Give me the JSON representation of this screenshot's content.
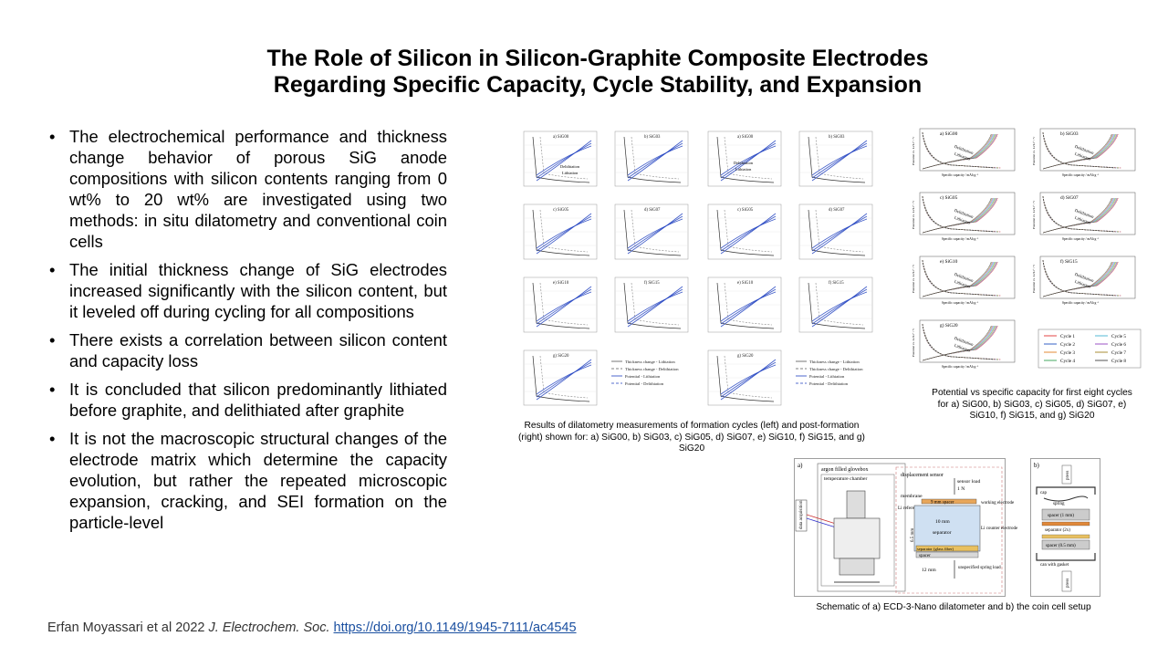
{
  "title": {
    "line1": "The Role of Silicon in Silicon-Graphite Composite Electrodes",
    "line2": "Regarding Specific Capacity, Cycle Stability, and Expansion"
  },
  "bullets": [
    "The electrochemical performance and thickness change behavior of porous SiG anode compositions with silicon contents ranging from 0 wt% to 20 wt% are investigated using two methods: in situ dilatometry and conventional coin cells",
    "The initial thickness change of SiG electrodes increased significantly with the silicon content, but it leveled off during cycling for all compositions",
    "There exists a correlation between silicon content and capacity loss",
    "It is concluded that silicon predominantly lithiated before graphite, and delithiated after graphite",
    "It is not the macroscopic structural changes of the electrode matrix which determine the capacity evolution, but rather the repeated microscopic expansion, cracking, and SEI formation on the particle-level"
  ],
  "citation": {
    "authors": "Erfan Moyassari et al 2022 ",
    "journal": "J. Electrochem. Soc.",
    "doi": "https://doi.org/10.1149/1945-7111/ac4545"
  },
  "figure1": {
    "caption": "Results of dilatometry measurements of formation cycles (left) and post-formation (right) shown for: a) SiG00, b) SiG03, c) SiG05, d) SiG07, e) SiG10, f) SiG15, and g) SiG20",
    "labels_left": [
      "a) SiG00",
      "b) SiG03",
      "c) SiG05",
      "d) SiG07",
      "e) SiG10",
      "f) SiG15",
      "g) SiG20"
    ],
    "labels_right": [
      "a) SiG00",
      "b) SiG03",
      "c) SiG05",
      "d) SiG07",
      "e) SiG10",
      "f) SiG15",
      "g) SiG20"
    ],
    "legend_left": [
      "Thickness change - Lithiation",
      "Thickness change - Delithiation",
      "Potential - Lithiation",
      "Potential - Delithiation"
    ],
    "legend_right": [
      "Thickness change - Lithiation",
      "Thickness change - Delithiation",
      "Potential - Lithiation",
      "Potential - Delithiation"
    ],
    "annotation_delith": "Delithiation",
    "annotation_lith": "Lithiation"
  },
  "figure2": {
    "caption": "Potential vs specific capacity for first eight cycles for a) SiG00, b) SiG03, c) SiG05, d) SiG07, e) SiG10, f) SiG15, and g) SiG20",
    "panels": [
      "a) SiG00",
      "b) SiG03",
      "c) SiG05",
      "d) SiG07",
      "e) SiG10",
      "f) SiG15",
      "g) SiG20"
    ],
    "ylabel": "Potential vs. Li/Li⁺ / V",
    "xlabel": "Specific capacity / mAh g⁻¹",
    "annotation_delith": "Delithiation",
    "annotation_lith": "Lithiation",
    "legend": [
      "Cycle 1",
      "Cycle 2",
      "Cycle 3",
      "Cycle 4",
      "Cycle 5",
      "Cycle 6",
      "Cycle 7",
      "Cycle 8"
    ],
    "colors": [
      "#e03030",
      "#2050c0",
      "#e07b20",
      "#30a050",
      "#40b0d0",
      "#9040c0",
      "#a08020",
      "#404040"
    ]
  },
  "figure3": {
    "caption": "Schematic of a) ECD-3-Nano dilatometer and b) the coin cell setup",
    "panel_a": "a)",
    "panel_b": "b)",
    "labels_a": {
      "glovebox": "argon filled glovebox",
      "chamber": "temperature chamber",
      "data": "data acquisition",
      "sensor": "displacement sensor",
      "sensor_load": "sensor load",
      "load_value": "1 N",
      "membrane": "membrane",
      "spacer9": "9 mm spacer",
      "li_ref": "Li reference",
      "work": "working electrode",
      "mm10": "10 mm",
      "mm65": "6.5 mm",
      "separator": "separator",
      "counter": "Li counter electrode",
      "glass": "separator (glass fiber)",
      "spacer": "spacer",
      "mm12": "12 mm",
      "spring": "unspecified spring load"
    },
    "labels_b": {
      "press_top": "press",
      "cap": "cap",
      "spring": "spring",
      "spacer1": "spacer (1 mm)",
      "sep": "separator (2x)",
      "spacer05": "spacer (0.5 mm)",
      "can": "can with gasket",
      "press_bottom": "press"
    }
  }
}
